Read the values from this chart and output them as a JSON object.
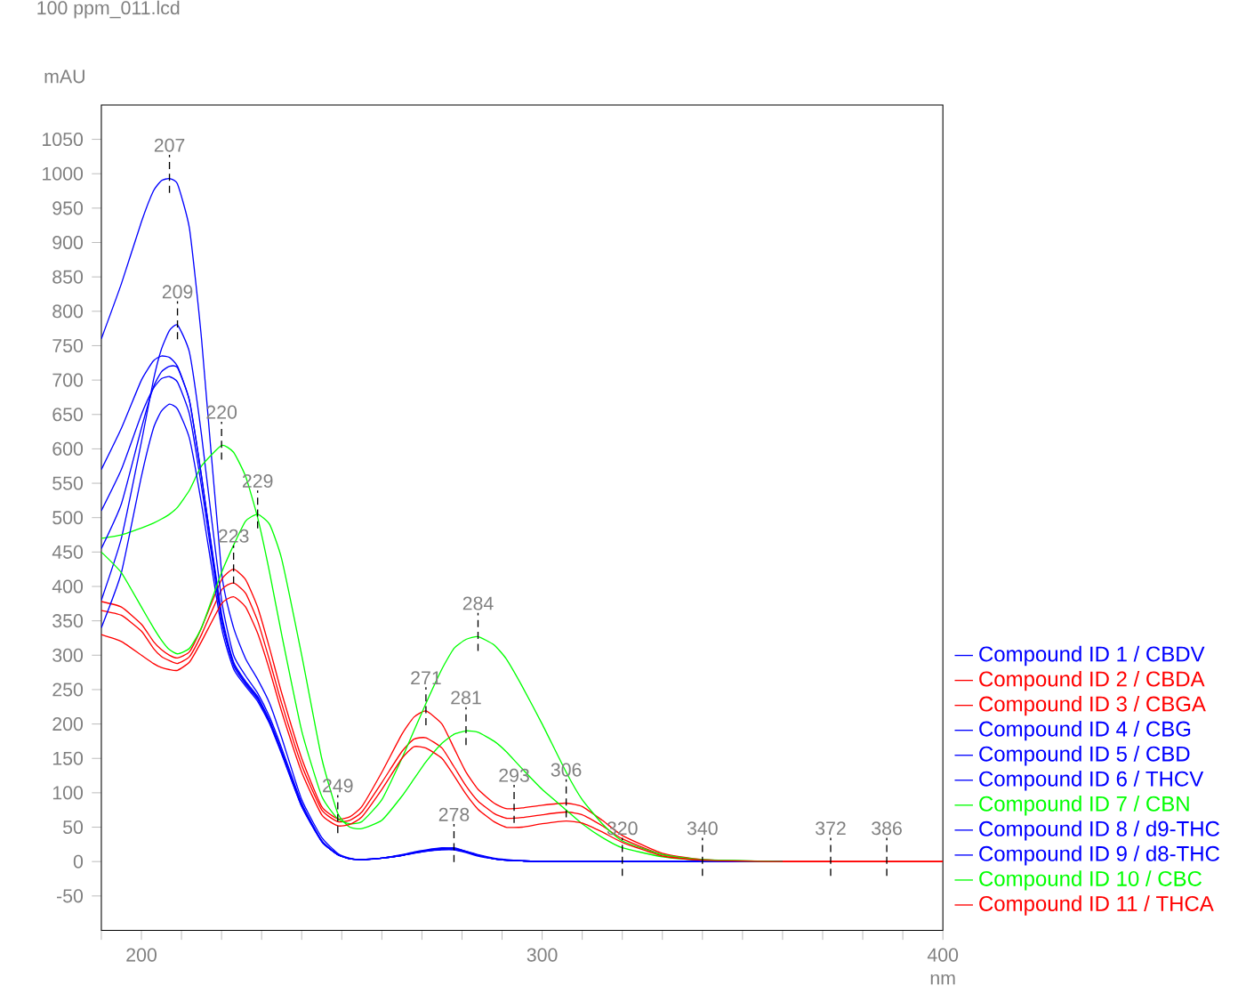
{
  "chart_data": {
    "type": "line",
    "title": "100 ppm_011.lcd",
    "xlabel": "nm",
    "ylabel": "mAU",
    "x": [
      190,
      195,
      200,
      203,
      205,
      207,
      209,
      212,
      215,
      220,
      223,
      226,
      229,
      232,
      235,
      240,
      245,
      249,
      252,
      255,
      260,
      265,
      268,
      271,
      275,
      278,
      281,
      284,
      288,
      291,
      295,
      300,
      306,
      310,
      315,
      320,
      330,
      340,
      360,
      380,
      400
    ],
    "series": [
      {
        "name": "Compound ID 1 /  CBDV",
        "color": "#0000ff",
        "values": [
          760,
          840,
          930,
          975,
          990,
          993,
          985,
          920,
          760,
          420,
          340,
          295,
          265,
          230,
          180,
          90,
          35,
          12,
          5,
          3,
          5,
          10,
          14,
          17,
          20,
          19,
          15,
          10,
          5,
          3,
          1,
          0,
          0,
          0,
          0,
          0,
          0,
          0,
          0,
          null,
          null
        ]
      },
      {
        "name": "Compound ID 2 /  CBDA",
        "color": "#ff0000",
        "values": [
          378,
          370,
          345,
          320,
          308,
          300,
          296,
          305,
          340,
          410,
          425,
          410,
          370,
          310,
          245,
          150,
          80,
          62,
          65,
          80,
          130,
          185,
          210,
          219,
          200,
          165,
          130,
          105,
          85,
          77,
          78,
          82,
          85,
          80,
          60,
          38,
          12,
          3,
          0,
          0,
          0
        ]
      },
      {
        "name": "Compound ID 3 /  CBGA",
        "color": "#ff0000",
        "values": [
          365,
          358,
          335,
          310,
          298,
          292,
          288,
          298,
          330,
          395,
          405,
          390,
          350,
          292,
          230,
          140,
          75,
          58,
          60,
          72,
          115,
          160,
          178,
          180,
          165,
          138,
          110,
          88,
          70,
          63,
          64,
          68,
          72,
          68,
          52,
          33,
          10,
          2,
          0,
          0,
          0
        ]
      },
      {
        "name": "Compound ID 4 /  CBG",
        "color": "#0000ff",
        "values": [
          570,
          630,
          700,
          728,
          735,
          733,
          720,
          670,
          560,
          360,
          290,
          262,
          240,
          205,
          160,
          82,
          30,
          10,
          4,
          3,
          5,
          9,
          13,
          16,
          18,
          18,
          14,
          9,
          4,
          2,
          1,
          0,
          0,
          0,
          0,
          0,
          0,
          0,
          0,
          null,
          null
        ]
      },
      {
        "name": "Compound ID 5 /  CBD",
        "color": "#0000ff",
        "values": [
          510,
          570,
          650,
          688,
          702,
          705,
          697,
          650,
          545,
          350,
          285,
          258,
          236,
          202,
          158,
          80,
          29,
          10,
          4,
          3,
          5,
          9,
          12,
          15,
          17,
          17,
          13,
          8,
          4,
          2,
          1,
          0,
          0,
          0,
          0,
          0,
          0,
          0,
          0,
          null,
          null
        ]
      },
      {
        "name": "Compound ID 6 /  THCV",
        "color": "#0000ff",
        "values": [
          380,
          470,
          610,
          700,
          745,
          772,
          780,
          740,
          620,
          380,
          300,
          270,
          245,
          210,
          165,
          85,
          30,
          10,
          4,
          3,
          5,
          9,
          13,
          16,
          18,
          18,
          14,
          9,
          4,
          2,
          1,
          0,
          0,
          0,
          0,
          0,
          0,
          0,
          0,
          null,
          null
        ]
      },
      {
        "name": "Compound ID 7 /  CBN",
        "color": "#00ff00",
        "values": [
          470,
          475,
          485,
          492,
          498,
          505,
          515,
          540,
          575,
          605,
          595,
          560,
          500,
          420,
          330,
          190,
          95,
          62,
          55,
          58,
          90,
          150,
          190,
          230,
          280,
          310,
          323,
          327,
          315,
          295,
          255,
          200,
          130,
          90,
          55,
          30,
          10,
          3,
          0,
          null,
          null
        ]
      },
      {
        "name": "Compound ID 8 /  d9-THC",
        "color": "#0000ff",
        "values": [
          455,
          520,
          630,
          690,
          712,
          720,
          718,
          670,
          560,
          355,
          288,
          260,
          238,
          204,
          160,
          82,
          30,
          10,
          4,
          3,
          5,
          9,
          13,
          16,
          19,
          20,
          15,
          9,
          4,
          2,
          1,
          0,
          0,
          0,
          0,
          0,
          0,
          0,
          0,
          null,
          null
        ]
      },
      {
        "name": "Compound ID 9 /  d8-THC",
        "color": "#0000ff",
        "values": [
          340,
          420,
          560,
          630,
          655,
          665,
          658,
          615,
          520,
          340,
          280,
          255,
          233,
          200,
          156,
          80,
          29,
          10,
          4,
          3,
          5,
          9,
          12,
          15,
          18,
          18,
          14,
          9,
          4,
          2,
          1,
          0,
          0,
          0,
          0,
          0,
          0,
          0,
          0,
          null,
          null
        ]
      },
      {
        "name": "Compound ID 10 /  CBC",
        "color": "#00ff00",
        "values": [
          450,
          420,
          370,
          340,
          322,
          308,
          302,
          310,
          340,
          420,
          460,
          495,
          505,
          490,
          440,
          300,
          150,
          70,
          50,
          48,
          60,
          95,
          120,
          145,
          172,
          185,
          190,
          188,
          175,
          160,
          135,
          105,
          75,
          55,
          35,
          20,
          7,
          2,
          0,
          null,
          null
        ]
      },
      {
        "name": "Compound ID 11 /  THCA",
        "color": "#ff0000",
        "values": [
          330,
          320,
          300,
          288,
          282,
          279,
          278,
          290,
          320,
          375,
          385,
          370,
          332,
          278,
          218,
          130,
          68,
          52,
          54,
          65,
          105,
          150,
          167,
          165,
          150,
          125,
          98,
          76,
          58,
          50,
          50,
          55,
          59,
          56,
          43,
          28,
          8,
          2,
          0,
          0,
          0
        ]
      }
    ],
    "annotations": [
      {
        "text": "207",
        "x": 207,
        "y": 993
      },
      {
        "text": "209",
        "x": 209,
        "y": 780
      },
      {
        "text": "220",
        "x": 220,
        "y": 605
      },
      {
        "text": "229",
        "x": 229,
        "y": 505
      },
      {
        "text": "223",
        "x": 223,
        "y": 425
      },
      {
        "text": "249",
        "x": 249,
        "y": 62
      },
      {
        "text": "284",
        "x": 284,
        "y": 327
      },
      {
        "text": "271",
        "x": 271,
        "y": 219
      },
      {
        "text": "281",
        "x": 281,
        "y": 190
      },
      {
        "text": "278",
        "x": 278,
        "y": 20
      },
      {
        "text": "293",
        "x": 293,
        "y": 77
      },
      {
        "text": "306",
        "x": 306,
        "y": 85
      },
      {
        "text": "320",
        "x": 320,
        "y": 0
      },
      {
        "text": "340",
        "x": 340,
        "y": 0
      },
      {
        "text": "372",
        "x": 372,
        "y": 0
      },
      {
        "text": "386",
        "x": 386,
        "y": 0
      }
    ],
    "xlim": [
      190,
      400
    ],
    "ylim": [
      -100,
      1100
    ],
    "xticks": [
      {
        "value": 190,
        "label": null
      },
      200,
      {
        "value": 210,
        "label": null
      },
      {
        "value": 220,
        "label": null
      },
      {
        "value": 230,
        "label": null
      },
      {
        "value": 240,
        "label": null
      },
      {
        "value": 250,
        "label": null
      },
      {
        "value": 260,
        "label": null
      },
      {
        "value": 270,
        "label": null
      },
      {
        "value": 280,
        "label": null
      },
      {
        "value": 290,
        "label": null
      },
      300,
      {
        "value": 310,
        "label": null
      },
      {
        "value": 320,
        "label": null
      },
      {
        "value": 330,
        "label": null
      },
      {
        "value": 340,
        "label": null
      },
      {
        "value": 350,
        "label": null
      },
      {
        "value": 360,
        "label": null
      },
      {
        "value": 370,
        "label": null
      },
      {
        "value": 380,
        "label": null
      },
      {
        "value": 390,
        "label": null
      },
      400
    ],
    "yticks": [
      -50,
      0,
      50,
      100,
      150,
      200,
      250,
      300,
      350,
      400,
      450,
      500,
      550,
      600,
      650,
      700,
      750,
      800,
      850,
      900,
      950,
      1000,
      1050
    ],
    "grid": false,
    "legend": "right",
    "marker": "none",
    "line_style": "solid"
  }
}
